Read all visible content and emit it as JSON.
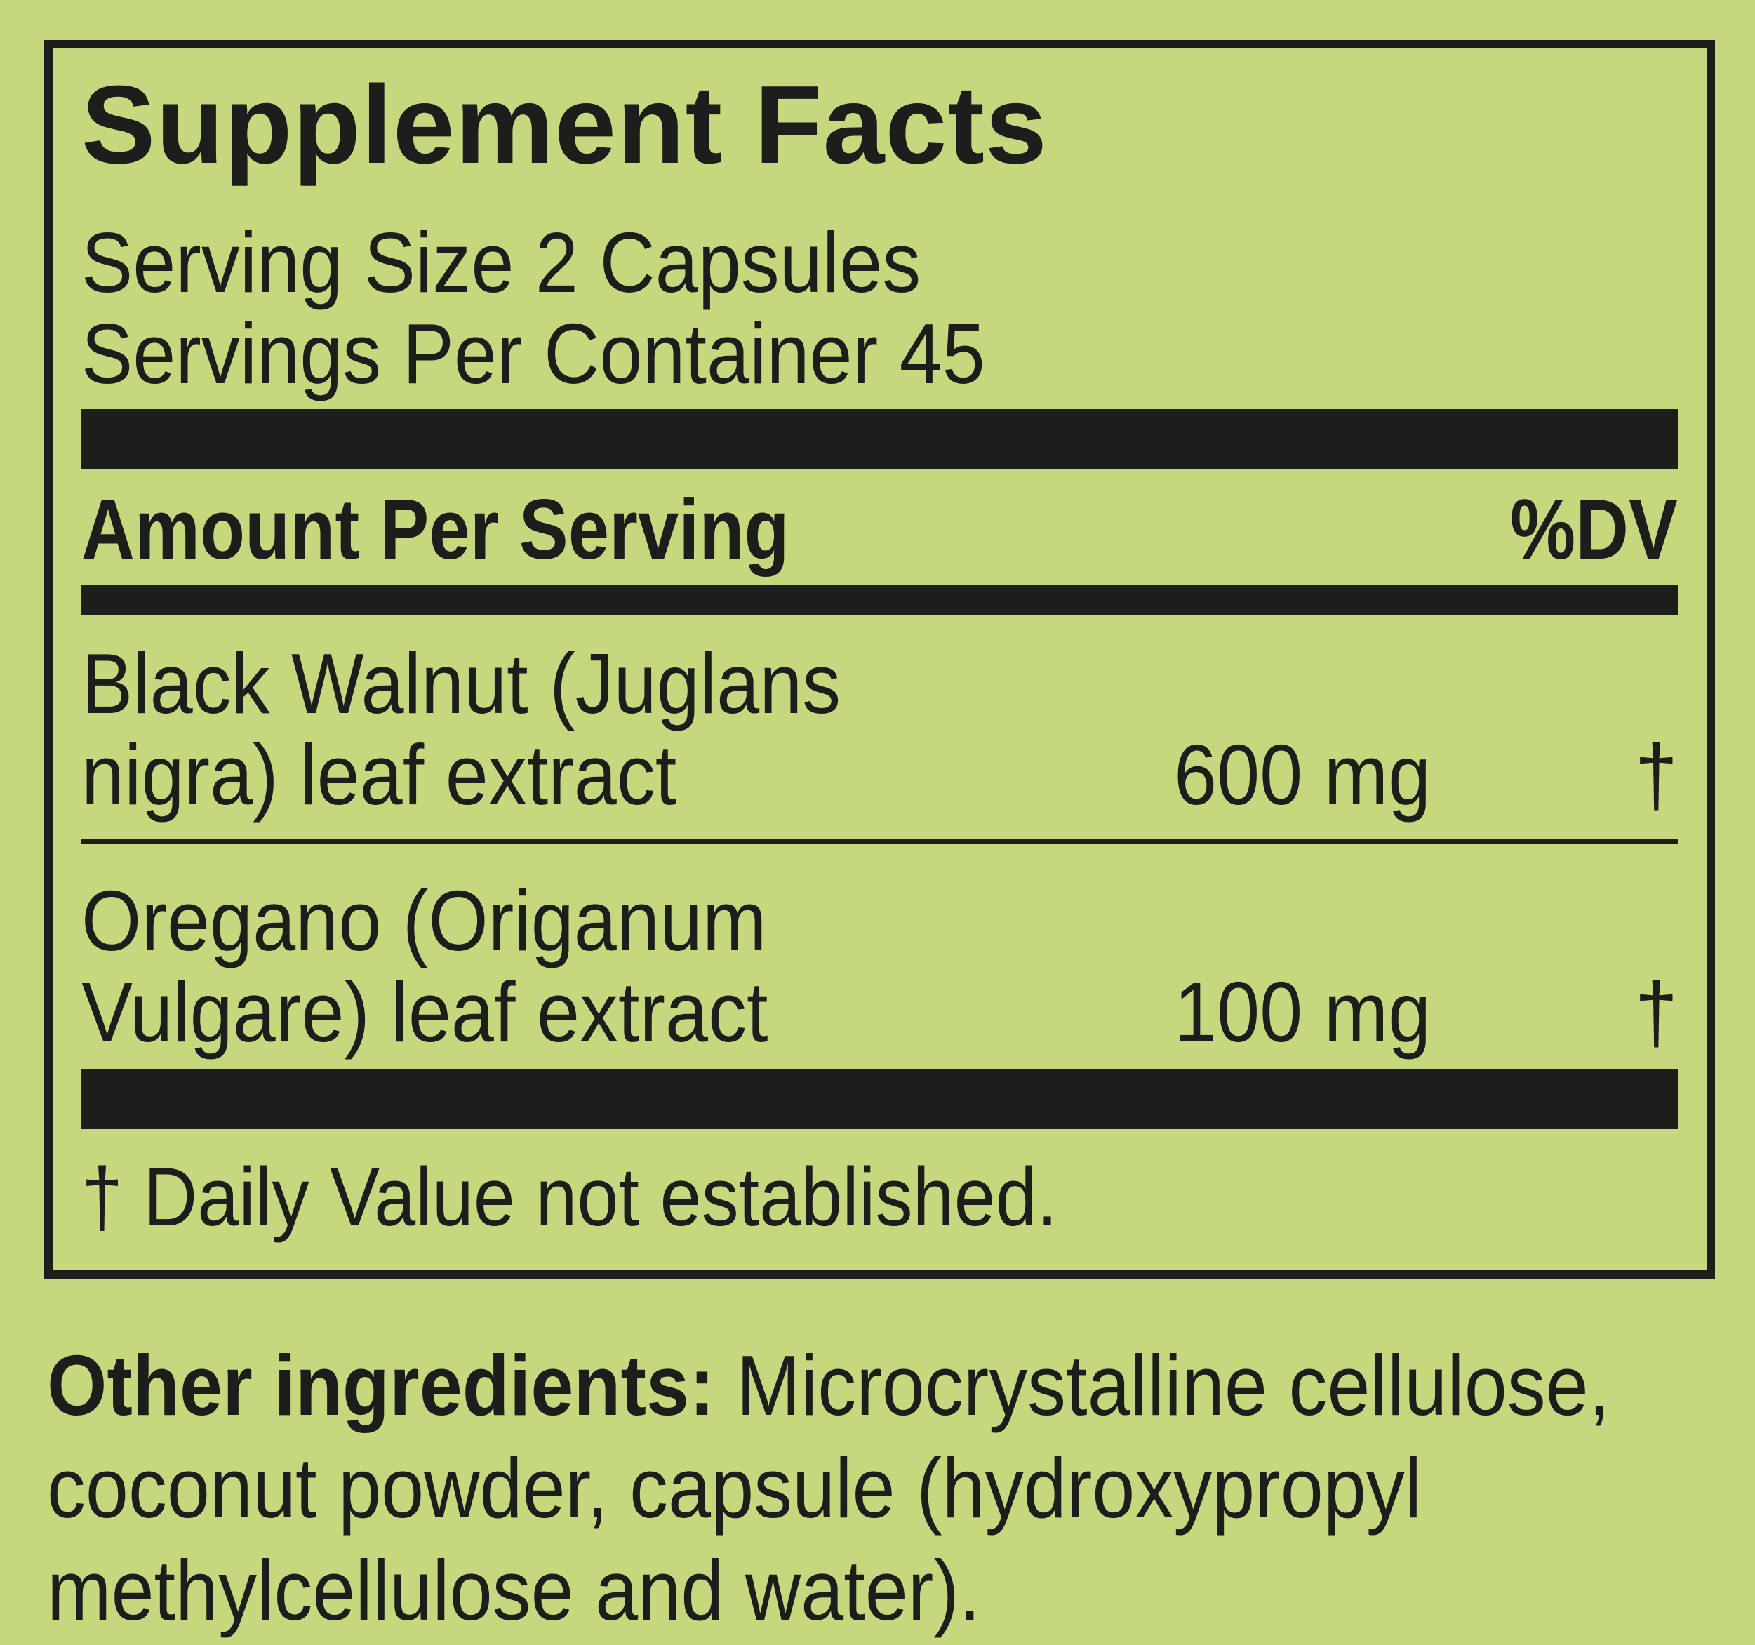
{
  "panel": {
    "title": "Supplement Facts",
    "serving_size": "Serving Size 2 Capsules",
    "servings_per_container": "Servings Per Container 45",
    "amount_per_serving": "Amount Per Serving",
    "percent_dv": "%DV",
    "rows": [
      {
        "name_line1": "Black Walnut (Juglans",
        "name_line2": "nigra) leaf extract",
        "amount": "600 mg",
        "dv": "†"
      },
      {
        "name_line1": "Oregano (Origanum",
        "name_line2": "Vulgare) leaf extract",
        "amount": "100 mg",
        "dv": "†"
      }
    ],
    "footnote": "† Daily Value not established.",
    "other_ingredients": {
      "label": "Other ingredients:",
      "line1": "Microcrystalline cellulose,",
      "line2": "coconut powder, capsule (hydroxypropyl",
      "line3": "methylcellulose and water)."
    },
    "colors": {
      "background": "#c5d87e",
      "ink": "#1d1d1b"
    }
  }
}
